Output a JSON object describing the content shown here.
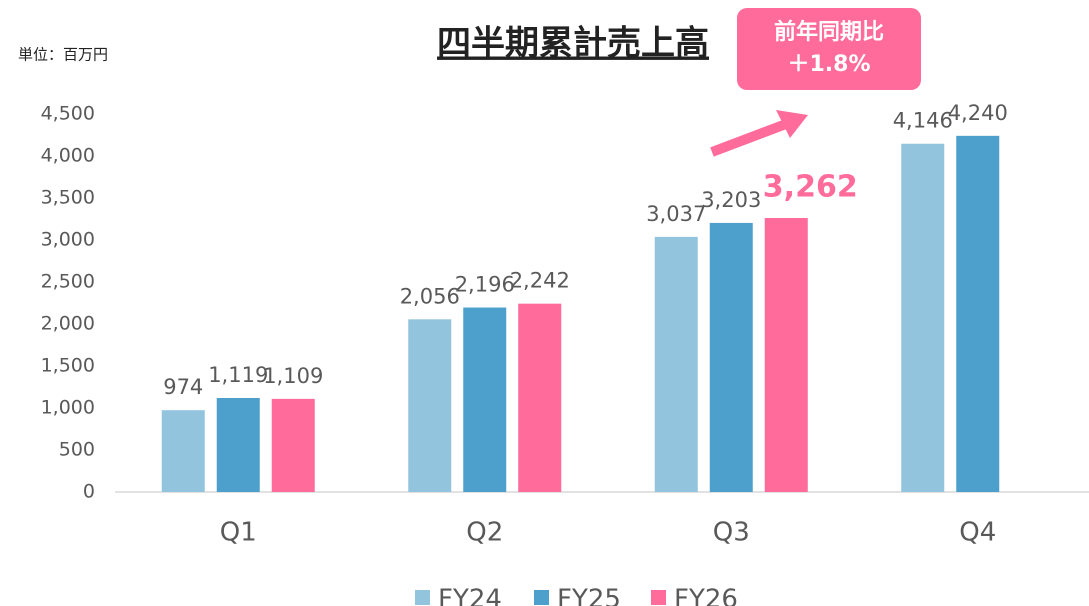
{
  "chart_data": {
    "type": "bar",
    "title": "四半期累計売上高",
    "unit_label": "単位：百万円",
    "annotation": {
      "line1": "前年同期比",
      "line2": "＋1.8%"
    },
    "categories": [
      "Q1",
      "Q2",
      "Q3",
      "Q4"
    ],
    "series": [
      {
        "name": "FY24",
        "color": "#93c4de",
        "values": [
          974,
          2056,
          3037,
          4146
        ],
        "value_labels": [
          "974",
          "2,056",
          "3,037",
          "4,146"
        ]
      },
      {
        "name": "FY25",
        "color": "#4ca0cb",
        "values": [
          1119,
          2196,
          3203,
          4240
        ],
        "value_labels": [
          "1,119",
          "2,196",
          "3,203",
          "4,240"
        ]
      },
      {
        "name": "FY26",
        "color": "#ff6b9b",
        "values": [
          1109,
          2242,
          3262,
          null
        ],
        "value_labels": [
          "1,109",
          "2,242",
          "3,262",
          null
        ]
      }
    ],
    "ylim": [
      0,
      4500
    ],
    "yticks": [
      0,
      500,
      {
        "value": 1000,
        "label": "1,000"
      },
      {
        "value": 1500,
        "label": "1,500"
      },
      {
        "value": 2000,
        "label": "2,000"
      },
      {
        "value": 2500,
        "label": "2,500"
      },
      {
        "value": 3000,
        "label": "3,000"
      },
      {
        "value": 3500,
        "label": "3,500"
      },
      {
        "value": 4000,
        "label": "4,000"
      },
      {
        "value": 4500,
        "label": "4,500"
      }
    ],
    "grid": false,
    "legend": "bottom"
  }
}
